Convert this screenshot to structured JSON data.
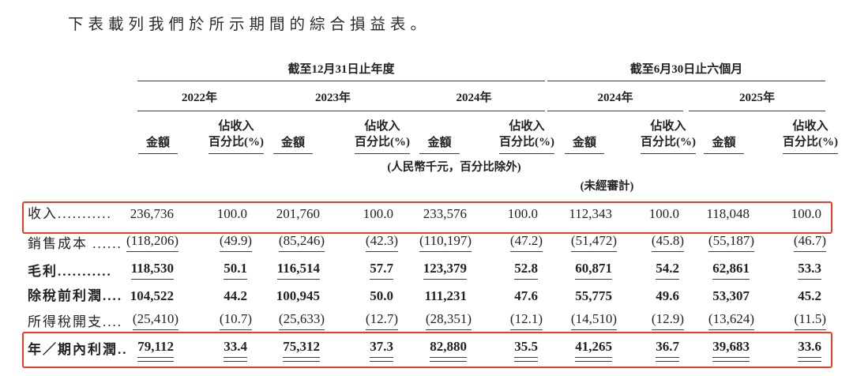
{
  "title": "下表載列我們於所示期間的綜合損益表。",
  "table": {
    "groups": [
      {
        "label": "截至12月31日止年度"
      },
      {
        "label": "截至6月30日止六個月"
      }
    ],
    "years": [
      "2022年",
      "2023年",
      "2024年",
      "2024年",
      "2025年"
    ],
    "col_headers": {
      "amount": "金額",
      "pct_line1": "佔收入",
      "pct_line2": "百分比(%)"
    },
    "notes": {
      "currency": "(人民幣千元，百分比除外)",
      "unaudited": "(未經審計)"
    },
    "rows": [
      {
        "label": "收入...........",
        "values": [
          "236,736",
          "100.0",
          "201,760",
          "100.0",
          "233,576",
          "100.0",
          "112,343",
          "100.0",
          "118,048",
          "100.0"
        ]
      },
      {
        "label": "銷售成本 ......",
        "values": [
          "(118,206)",
          "(49.9)",
          "(85,246)",
          "(42.3)",
          "(110,197)",
          "(47.2)",
          "(51,472)",
          "(45.8)",
          "(55,187)",
          "(46.7)"
        ]
      },
      {
        "label": "毛利...........",
        "values": [
          "118,530",
          "50.1",
          "116,514",
          "57.7",
          "123,379",
          "52.8",
          "60,871",
          "54.2",
          "62,861",
          "53.3"
        ]
      },
      {
        "label": "除稅前利潤....",
        "values": [
          "104,522",
          "44.2",
          "100,945",
          "50.0",
          "111,231",
          "47.6",
          "55,775",
          "49.6",
          "53,307",
          "45.2"
        ]
      },
      {
        "label": "所得稅開支....",
        "values": [
          "(25,410)",
          "(10.7)",
          "(25,633)",
          "(12.7)",
          "(28,351)",
          "(12.1)",
          "(14,510)",
          "(12.9)",
          "(13,624)",
          "(11.5)"
        ]
      },
      {
        "label": "年／期內利潤..",
        "values": [
          "79,112",
          "33.4",
          "75,312",
          "37.3",
          "82,880",
          "35.5",
          "41,265",
          "36.7",
          "39,683",
          "33.6"
        ]
      }
    ],
    "highlight_color": "#e63c28"
  }
}
